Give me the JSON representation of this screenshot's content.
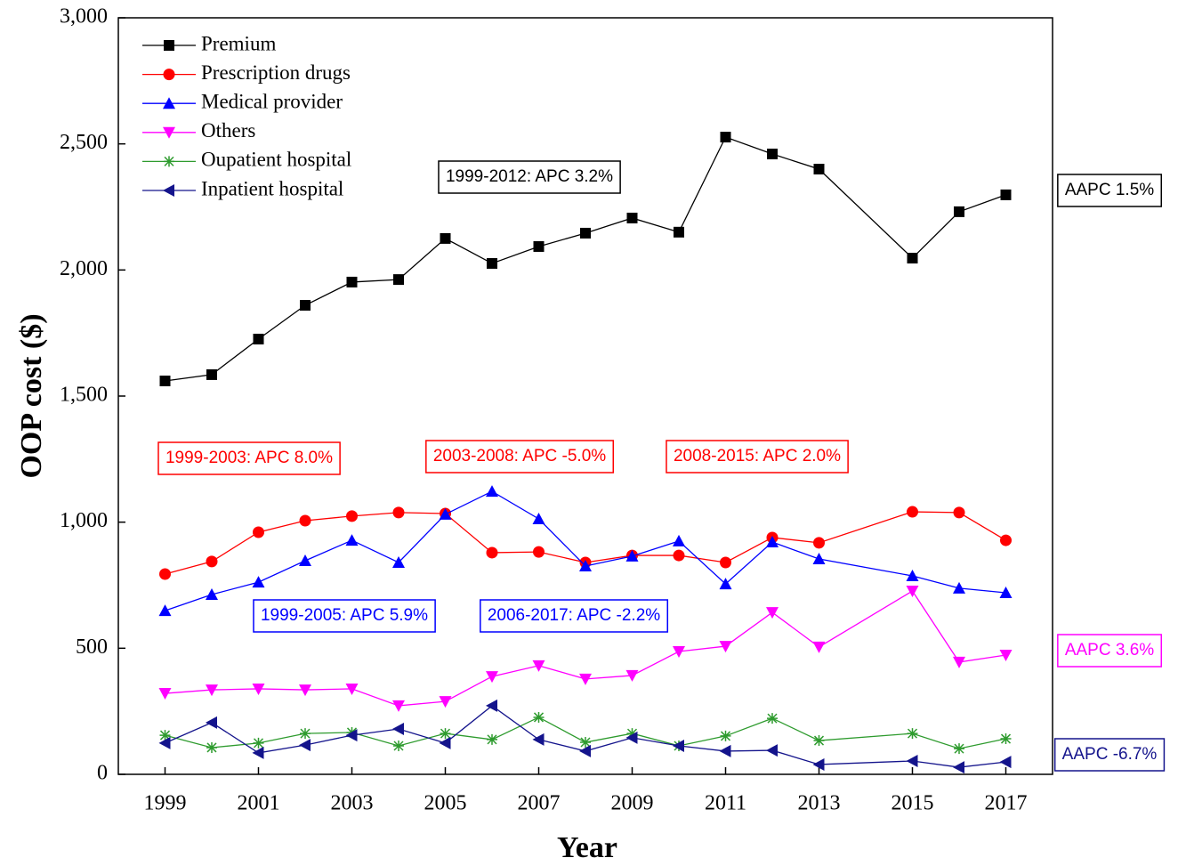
{
  "chart_data": {
    "type": "line",
    "x_label": "Year",
    "y_label": "OOP cost ($)",
    "x": [
      1999,
      2000,
      2001,
      2002,
      2003,
      2004,
      2005,
      2006,
      2007,
      2008,
      2009,
      2010,
      2011,
      2012,
      2013,
      2015,
      2016,
      2017
    ],
    "xlim": [
      1998,
      2018
    ],
    "xticks": [
      1999,
      2001,
      2003,
      2005,
      2007,
      2009,
      2011,
      2013,
      2015,
      2017
    ],
    "ylim": [
      0,
      3000
    ],
    "yticks": [
      0,
      500,
      {
        "value": 1000,
        "label": "1,000"
      },
      {
        "value": 1500,
        "label": "1,500"
      },
      {
        "value": 2000,
        "label": "2,000"
      },
      {
        "value": 2500,
        "label": "2,500"
      },
      {
        "value": 3000,
        "label": "3,000"
      }
    ],
    "legend": "upper left",
    "series": [
      {
        "name": "Premium",
        "color": "#000000",
        "marker": "square",
        "values": [
          1560,
          1585,
          1726,
          1860,
          1952,
          1962,
          2125,
          2026,
          2093,
          2146,
          2206,
          2150,
          2527,
          2460,
          2400,
          2047,
          2231,
          2298
        ]
      },
      {
        "name": "Prescription drugs",
        "color": "#ff0000",
        "marker": "circle",
        "values": [
          794,
          844,
          960,
          1006,
          1024,
          1038,
          1034,
          879,
          882,
          840,
          868,
          868,
          840,
          939,
          918,
          1041,
          1038,
          928
        ]
      },
      {
        "name": "Medical provider",
        "color": "#0000ff",
        "marker": "triangle-up",
        "values": [
          649,
          713,
          762,
          847,
          928,
          840,
          1031,
          1122,
          1013,
          826,
          865,
          925,
          755,
          921,
          854,
          787,
          738,
          720
        ]
      },
      {
        "name": "Others",
        "color": "#ff00ff",
        "marker": "triangle-down",
        "values": [
          321,
          335,
          339,
          335,
          339,
          272,
          289,
          388,
          431,
          378,
          392,
          487,
          508,
          642,
          505,
          727,
          445,
          473
        ]
      },
      {
        "name": "Oupatient hospital",
        "color": "#2e9b2e",
        "marker": "asterisk",
        "values": [
          155,
          106,
          124,
          162,
          166,
          113,
          162,
          138,
          226,
          127,
          162,
          113,
          152,
          222,
          134,
          162,
          102,
          141
        ]
      },
      {
        "name": "Inpatient hospital",
        "color": "#14148c",
        "marker": "triangle-left",
        "values": [
          124,
          205,
          85,
          116,
          155,
          180,
          124,
          272,
          138,
          92,
          145,
          113,
          92,
          95,
          39,
          53,
          28,
          49
        ]
      }
    ],
    "annotations": [
      {
        "text": "1999-2012: APC 3.2%",
        "color": "#000000"
      },
      {
        "text": "AAPC 1.5%",
        "color": "#000000"
      },
      {
        "text": "1999-2003: APC 8.0%",
        "color": "#ff0000"
      },
      {
        "text": "2003-2008: APC -5.0%",
        "color": "#ff0000"
      },
      {
        "text": "2008-2015: APC 2.0%",
        "color": "#ff0000"
      },
      {
        "text": "1999-2005: APC 5.9%",
        "color": "#0000ff"
      },
      {
        "text": "2006-2017: APC -2.2%",
        "color": "#0000ff"
      },
      {
        "text": "AAPC 3.6%",
        "color": "#ff00ff"
      },
      {
        "text": "AAPC -6.7%",
        "color": "#14148c"
      }
    ]
  }
}
